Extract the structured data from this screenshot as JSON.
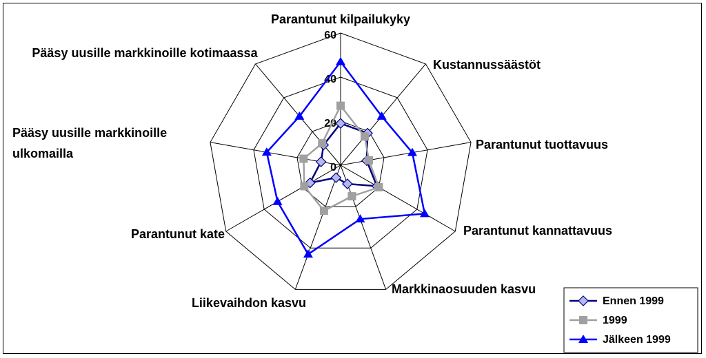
{
  "chart_data": {
    "type": "radar",
    "categories": [
      "Parantunut kilpailukyky",
      "Kustannussäästöt",
      "Parantunut tuottavuus",
      "Parantunut kannattavuus",
      "Markkinaosuuden kasvu",
      "Liikevaihdon kasvu",
      "Parantunut kate",
      "Pääsy uusille markkinoille ulkomailla",
      "Pääsy uusille markkinoille kotimaassa"
    ],
    "series": [
      {
        "name": "Ennen 1999",
        "color": "#000080",
        "marker": "diamond",
        "values": [
          19,
          19,
          12,
          19,
          9,
          6,
          16,
          9,
          12
        ]
      },
      {
        "name": "1999",
        "color": "#a0a0a0",
        "marker": "square",
        "values": [
          27,
          17,
          13,
          20,
          15,
          22,
          19,
          17,
          13
        ]
      },
      {
        "name": "Jälkeen 1999",
        "color": "#0000ff",
        "marker": "triangle",
        "values": [
          47,
          29,
          33,
          44,
          26,
          43,
          33,
          34,
          29
        ]
      }
    ],
    "ylim": [
      0,
      60
    ],
    "yticks": [
      0,
      20,
      40,
      60
    ],
    "grid": true,
    "legend": "lower right"
  }
}
